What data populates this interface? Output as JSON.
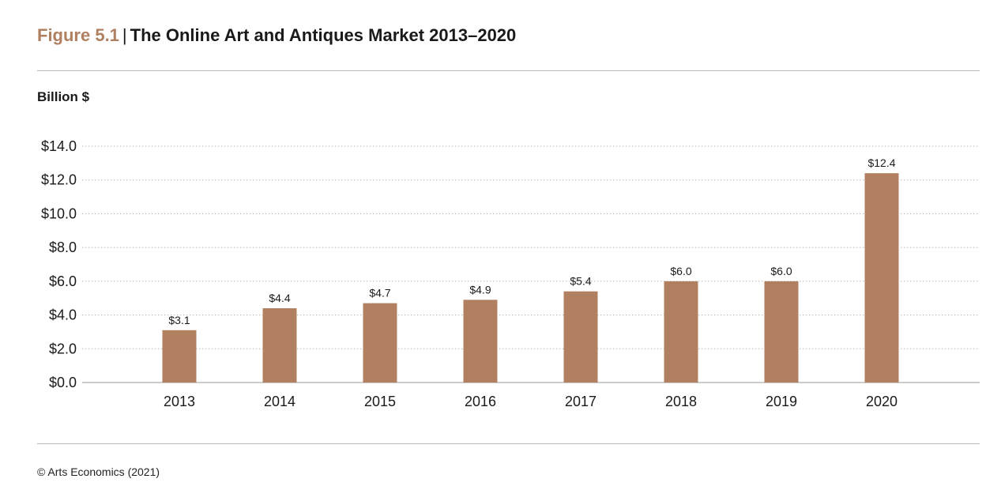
{
  "figure": {
    "number": "Figure 5.1",
    "separator": "|",
    "title": "The Online Art and Antiques Market 2013–2020",
    "unit_label": "Billion $",
    "source": "© Arts Economics (2021)"
  },
  "chart_data": {
    "type": "bar",
    "title": "The Online Art and Antiques Market 2013–2020",
    "ylabel": "Billion $",
    "xlabel": "",
    "categories": [
      "2013",
      "2014",
      "2015",
      "2016",
      "2017",
      "2018",
      "2019",
      "2020"
    ],
    "values": [
      3.1,
      4.4,
      4.7,
      4.9,
      5.4,
      6.0,
      6.0,
      12.4
    ],
    "data_labels": [
      "$3.1",
      "$4.4",
      "$4.7",
      "$4.9",
      "$5.4",
      "$6.0",
      "$6.0",
      "$12.4"
    ],
    "ylim": [
      0,
      14
    ],
    "yticks": [
      0,
      2,
      4,
      6,
      8,
      10,
      12,
      14
    ],
    "ytick_labels": [
      "$0.0",
      "$2.0",
      "$4.0",
      "$6.0",
      "$8.0",
      "$10.0",
      "$12.0",
      "$14.0"
    ],
    "grid": "dotted horizontal",
    "bar_color": "#b08060"
  }
}
